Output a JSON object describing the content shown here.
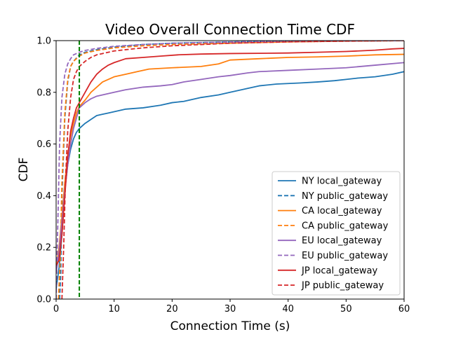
{
  "chart_data": {
    "type": "line",
    "title": "Video Overall Connection Time CDF",
    "xlabel": "Connection Time (s)",
    "ylabel": "CDF",
    "xlim": [
      0,
      60
    ],
    "ylim": [
      0,
      1.0
    ],
    "x_ticks": [
      0,
      10,
      20,
      30,
      40,
      50,
      60
    ],
    "y_ticks": [
      0.0,
      0.2,
      0.4,
      0.6,
      0.8,
      1.0
    ],
    "x_tick_labels": [
      "0",
      "10",
      "20",
      "30",
      "40",
      "50",
      "60"
    ],
    "y_tick_labels": [
      "0.0",
      "0.2",
      "0.4",
      "0.6",
      "0.8",
      "1.0"
    ],
    "grid": false,
    "legend_position": "lower-right",
    "reference_line": {
      "x": 4,
      "color": "#008000",
      "style": "dashed"
    },
    "series": [
      {
        "name": "NY local_gateway",
        "color": "#1f77b4",
        "style": "solid",
        "points": [
          [
            0,
            0.04
          ],
          [
            0.5,
            0.12
          ],
          [
            1,
            0.25
          ],
          [
            1.5,
            0.42
          ],
          [
            2,
            0.52
          ],
          [
            2.5,
            0.58
          ],
          [
            3,
            0.62
          ],
          [
            3.5,
            0.645
          ],
          [
            4,
            0.66
          ],
          [
            5,
            0.68
          ],
          [
            6,
            0.695
          ],
          [
            7,
            0.71
          ],
          [
            8,
            0.715
          ],
          [
            9,
            0.72
          ],
          [
            10,
            0.725
          ],
          [
            12,
            0.735
          ],
          [
            15,
            0.74
          ],
          [
            18,
            0.75
          ],
          [
            20,
            0.76
          ],
          [
            22,
            0.765
          ],
          [
            25,
            0.78
          ],
          [
            28,
            0.79
          ],
          [
            30,
            0.8
          ],
          [
            33,
            0.815
          ],
          [
            35,
            0.825
          ],
          [
            38,
            0.832
          ],
          [
            40,
            0.834
          ],
          [
            42,
            0.836
          ],
          [
            45,
            0.84
          ],
          [
            48,
            0.845
          ],
          [
            50,
            0.85
          ],
          [
            52,
            0.855
          ],
          [
            55,
            0.86
          ],
          [
            58,
            0.87
          ],
          [
            60,
            0.88
          ]
        ]
      },
      {
        "name": "NY public_gateway",
        "color": "#1f77b4",
        "style": "dashed",
        "points": [
          [
            0.6,
            0.0
          ],
          [
            0.8,
            0.1
          ],
          [
            1,
            0.4
          ],
          [
            1.5,
            0.7
          ],
          [
            2,
            0.84
          ],
          [
            2.5,
            0.9
          ],
          [
            3,
            0.92
          ],
          [
            4,
            0.945
          ],
          [
            5,
            0.955
          ],
          [
            7,
            0.965
          ],
          [
            10,
            0.975
          ],
          [
            15,
            0.985
          ],
          [
            20,
            0.99
          ],
          [
            30,
            0.995
          ],
          [
            40,
            0.998
          ],
          [
            50,
            0.999
          ],
          [
            60,
            1.0
          ]
        ]
      },
      {
        "name": "CA local_gateway",
        "color": "#ff7f0e",
        "style": "solid",
        "points": [
          [
            0,
            0.12
          ],
          [
            0.5,
            0.2
          ],
          [
            1,
            0.32
          ],
          [
            1.5,
            0.45
          ],
          [
            2,
            0.56
          ],
          [
            2.5,
            0.63
          ],
          [
            3,
            0.68
          ],
          [
            3.5,
            0.72
          ],
          [
            4,
            0.745
          ],
          [
            5,
            0.77
          ],
          [
            6,
            0.8
          ],
          [
            7,
            0.82
          ],
          [
            8,
            0.84
          ],
          [
            10,
            0.86
          ],
          [
            12,
            0.87
          ],
          [
            14,
            0.88
          ],
          [
            16,
            0.89
          ],
          [
            20,
            0.895
          ],
          [
            25,
            0.9
          ],
          [
            28,
            0.91
          ],
          [
            30,
            0.925
          ],
          [
            35,
            0.93
          ],
          [
            40,
            0.935
          ],
          [
            45,
            0.937
          ],
          [
            50,
            0.94
          ],
          [
            55,
            0.945
          ],
          [
            60,
            0.947
          ]
        ]
      },
      {
        "name": "CA public_gateway",
        "color": "#ff7f0e",
        "style": "dashed",
        "points": [
          [
            0.4,
            0.0
          ],
          [
            0.7,
            0.15
          ],
          [
            1,
            0.45
          ],
          [
            1.5,
            0.72
          ],
          [
            2,
            0.85
          ],
          [
            2.5,
            0.9
          ],
          [
            3,
            0.92
          ],
          [
            4,
            0.94
          ],
          [
            5,
            0.952
          ],
          [
            7,
            0.962
          ],
          [
            10,
            0.972
          ],
          [
            15,
            0.98
          ],
          [
            20,
            0.985
          ],
          [
            30,
            0.99
          ],
          [
            40,
            0.995
          ],
          [
            50,
            0.998
          ],
          [
            60,
            1.0
          ]
        ]
      },
      {
        "name": "EU local_gateway",
        "color": "#9467bd",
        "style": "solid",
        "points": [
          [
            0,
            0.1
          ],
          [
            0.5,
            0.18
          ],
          [
            1,
            0.3
          ],
          [
            1.5,
            0.42
          ],
          [
            2,
            0.52
          ],
          [
            2.5,
            0.6
          ],
          [
            3,
            0.66
          ],
          [
            3.5,
            0.7
          ],
          [
            4,
            0.74
          ],
          [
            5,
            0.76
          ],
          [
            6,
            0.775
          ],
          [
            7,
            0.785
          ],
          [
            8,
            0.79
          ],
          [
            10,
            0.8
          ],
          [
            12,
            0.81
          ],
          [
            15,
            0.82
          ],
          [
            18,
            0.825
          ],
          [
            20,
            0.83
          ],
          [
            22,
            0.84
          ],
          [
            25,
            0.85
          ],
          [
            28,
            0.86
          ],
          [
            30,
            0.865
          ],
          [
            33,
            0.875
          ],
          [
            35,
            0.88
          ],
          [
            40,
            0.885
          ],
          [
            45,
            0.89
          ],
          [
            50,
            0.895
          ],
          [
            55,
            0.905
          ],
          [
            60,
            0.915
          ]
        ]
      },
      {
        "name": "EU public_gateway",
        "color": "#9467bd",
        "style": "dashed",
        "points": [
          [
            0,
            0.0
          ],
          [
            0.3,
            0.3
          ],
          [
            0.6,
            0.6
          ],
          [
            1,
            0.78
          ],
          [
            1.5,
            0.87
          ],
          [
            2,
            0.91
          ],
          [
            2.5,
            0.93
          ],
          [
            3,
            0.945
          ],
          [
            4,
            0.955
          ],
          [
            5,
            0.962
          ],
          [
            7,
            0.97
          ],
          [
            10,
            0.978
          ],
          [
            15,
            0.985
          ],
          [
            20,
            0.99
          ],
          [
            30,
            0.995
          ],
          [
            40,
            0.998
          ],
          [
            60,
            1.0
          ]
        ]
      },
      {
        "name": "JP local_gateway",
        "color": "#d62728",
        "style": "solid",
        "points": [
          [
            0,
            0.13
          ],
          [
            0.5,
            0.15
          ],
          [
            1,
            0.25
          ],
          [
            1.5,
            0.4
          ],
          [
            2,
            0.55
          ],
          [
            2.5,
            0.65
          ],
          [
            3,
            0.7
          ],
          [
            3.5,
            0.74
          ],
          [
            4,
            0.76
          ],
          [
            5,
            0.8
          ],
          [
            6,
            0.84
          ],
          [
            7,
            0.87
          ],
          [
            8,
            0.89
          ],
          [
            9,
            0.905
          ],
          [
            10,
            0.915
          ],
          [
            12,
            0.93
          ],
          [
            15,
            0.935
          ],
          [
            18,
            0.94
          ],
          [
            21,
            0.945
          ],
          [
            25,
            0.948
          ],
          [
            30,
            0.95
          ],
          [
            40,
            0.952
          ],
          [
            45,
            0.955
          ],
          [
            50,
            0.958
          ],
          [
            55,
            0.963
          ],
          [
            58,
            0.968
          ],
          [
            60,
            0.97
          ]
        ]
      },
      {
        "name": "JP public_gateway",
        "color": "#d62728",
        "style": "dashed",
        "points": [
          [
            1,
            0.0
          ],
          [
            1.3,
            0.2
          ],
          [
            1.6,
            0.45
          ],
          [
            2,
            0.65
          ],
          [
            2.5,
            0.78
          ],
          [
            3,
            0.85
          ],
          [
            3.5,
            0.88
          ],
          [
            4,
            0.9
          ],
          [
            5,
            0.92
          ],
          [
            6,
            0.935
          ],
          [
            7,
            0.945
          ],
          [
            8,
            0.95
          ],
          [
            10,
            0.96
          ],
          [
            12,
            0.965
          ],
          [
            15,
            0.972
          ],
          [
            20,
            0.98
          ],
          [
            25,
            0.985
          ],
          [
            30,
            0.99
          ],
          [
            40,
            0.995
          ],
          [
            50,
            0.998
          ],
          [
            60,
            1.0
          ]
        ]
      }
    ]
  }
}
